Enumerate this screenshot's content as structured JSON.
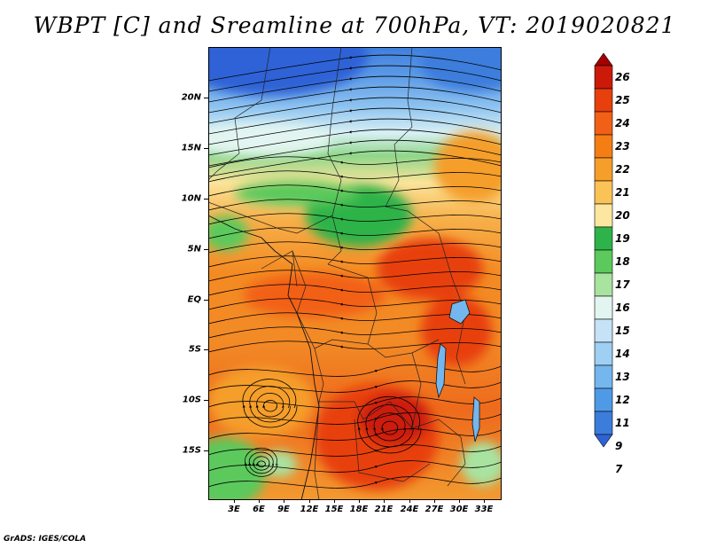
{
  "title": "WBPT [C] and Sreamline at 700hPa, VT: 2019020821",
  "credit": "GrADS: IGES/COLA",
  "map": {
    "variable": "Wet-bulb potential temperature",
    "units": "C",
    "level": "700hPa",
    "valid_time": "2019020821",
    "lat_labels": [
      "20N",
      "15N",
      "10N",
      "5N",
      "EQ",
      "5S",
      "10S",
      "15S"
    ],
    "lon_labels": [
      "3E",
      "6E",
      "9E",
      "12E",
      "15E",
      "18E",
      "21E",
      "24E",
      "27E",
      "30E",
      "33E"
    ]
  },
  "colorbar": {
    "labels": [
      "26",
      "25",
      "24",
      "23",
      "22",
      "21",
      "20",
      "19",
      "18",
      "17",
      "16",
      "15",
      "14",
      "13",
      "12",
      "11",
      "9",
      "7"
    ],
    "colors": [
      "#a50000",
      "#cc1a0a",
      "#e8400d",
      "#f26018",
      "#f57e14",
      "#f59e2a",
      "#fac257",
      "#fce6a0",
      "#2eb34a",
      "#5cc95c",
      "#a8e3a0",
      "#e2f5f0",
      "#c6e2f7",
      "#9fcff2",
      "#74b6ee",
      "#4f9ae6",
      "#3c7ddc",
      "#2e62d6"
    ]
  }
}
